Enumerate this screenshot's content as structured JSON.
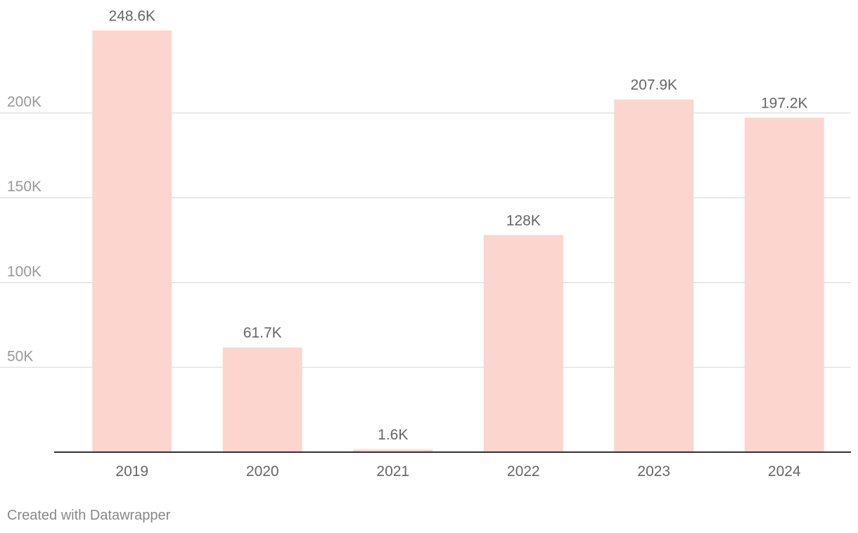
{
  "chart_data": {
    "type": "bar",
    "categories": [
      "2019",
      "2020",
      "2021",
      "2022",
      "2023",
      "2024"
    ],
    "values": [
      248600,
      61700,
      1600,
      128000,
      207900,
      197200
    ],
    "value_labels": [
      "248.6K",
      "61.7K",
      "1.6K",
      "128K",
      "207.9K",
      "197.2K"
    ],
    "y_ticks": [
      50000,
      100000,
      150000,
      200000
    ],
    "y_tick_labels": [
      "50K",
      "100K",
      "150K",
      "200K"
    ],
    "ylim": [
      0,
      250000
    ],
    "grid": true,
    "title": "",
    "xlabel": "",
    "ylabel": ""
  },
  "colors": {
    "bar": "#fcd5ce",
    "gridline": "#e2e2e2",
    "baseline": "#333333"
  },
  "footer": {
    "credit": "Created with Datawrapper"
  }
}
